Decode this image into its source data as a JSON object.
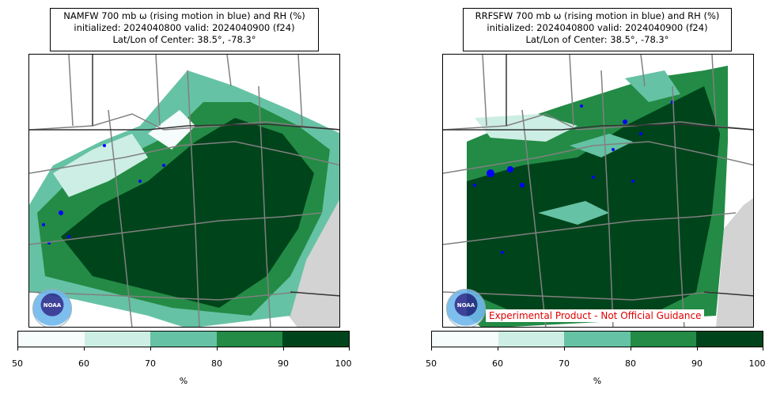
{
  "panels": [
    {
      "title_line1": "NAMFW 700 mb ω (rising motion in blue) and RH (%)",
      "title_line2": "initialized: 2024040800 valid: 2024040900 (f24)",
      "title_line3": "Lat/Lon of Center: 38.5°, -78.3°",
      "logo_text": "NOAA"
    },
    {
      "title_line1": "RRFSFW 700 mb ω (rising motion in blue) and RH (%)",
      "title_line2": "initialized: 2024040800 valid: 2024040900 (f24)",
      "title_line3": "Lat/Lon of Center: 38.5°, -78.3°",
      "logo_text": "NOAA",
      "disclaimer": "Experimental Product - Not Official Guidance"
    }
  ],
  "colorbar": {
    "ticks": [
      "50",
      "60",
      "70",
      "80",
      "90",
      "100"
    ],
    "unit": "%",
    "colors": [
      "#f5fcfb",
      "#cdeee4",
      "#66c2a4",
      "#238b45",
      "#00441b"
    ]
  },
  "colors": {
    "rising_motion": "#0000ff",
    "ocean_land_mask": "#d3d3d3",
    "boundaries": "#808080"
  }
}
